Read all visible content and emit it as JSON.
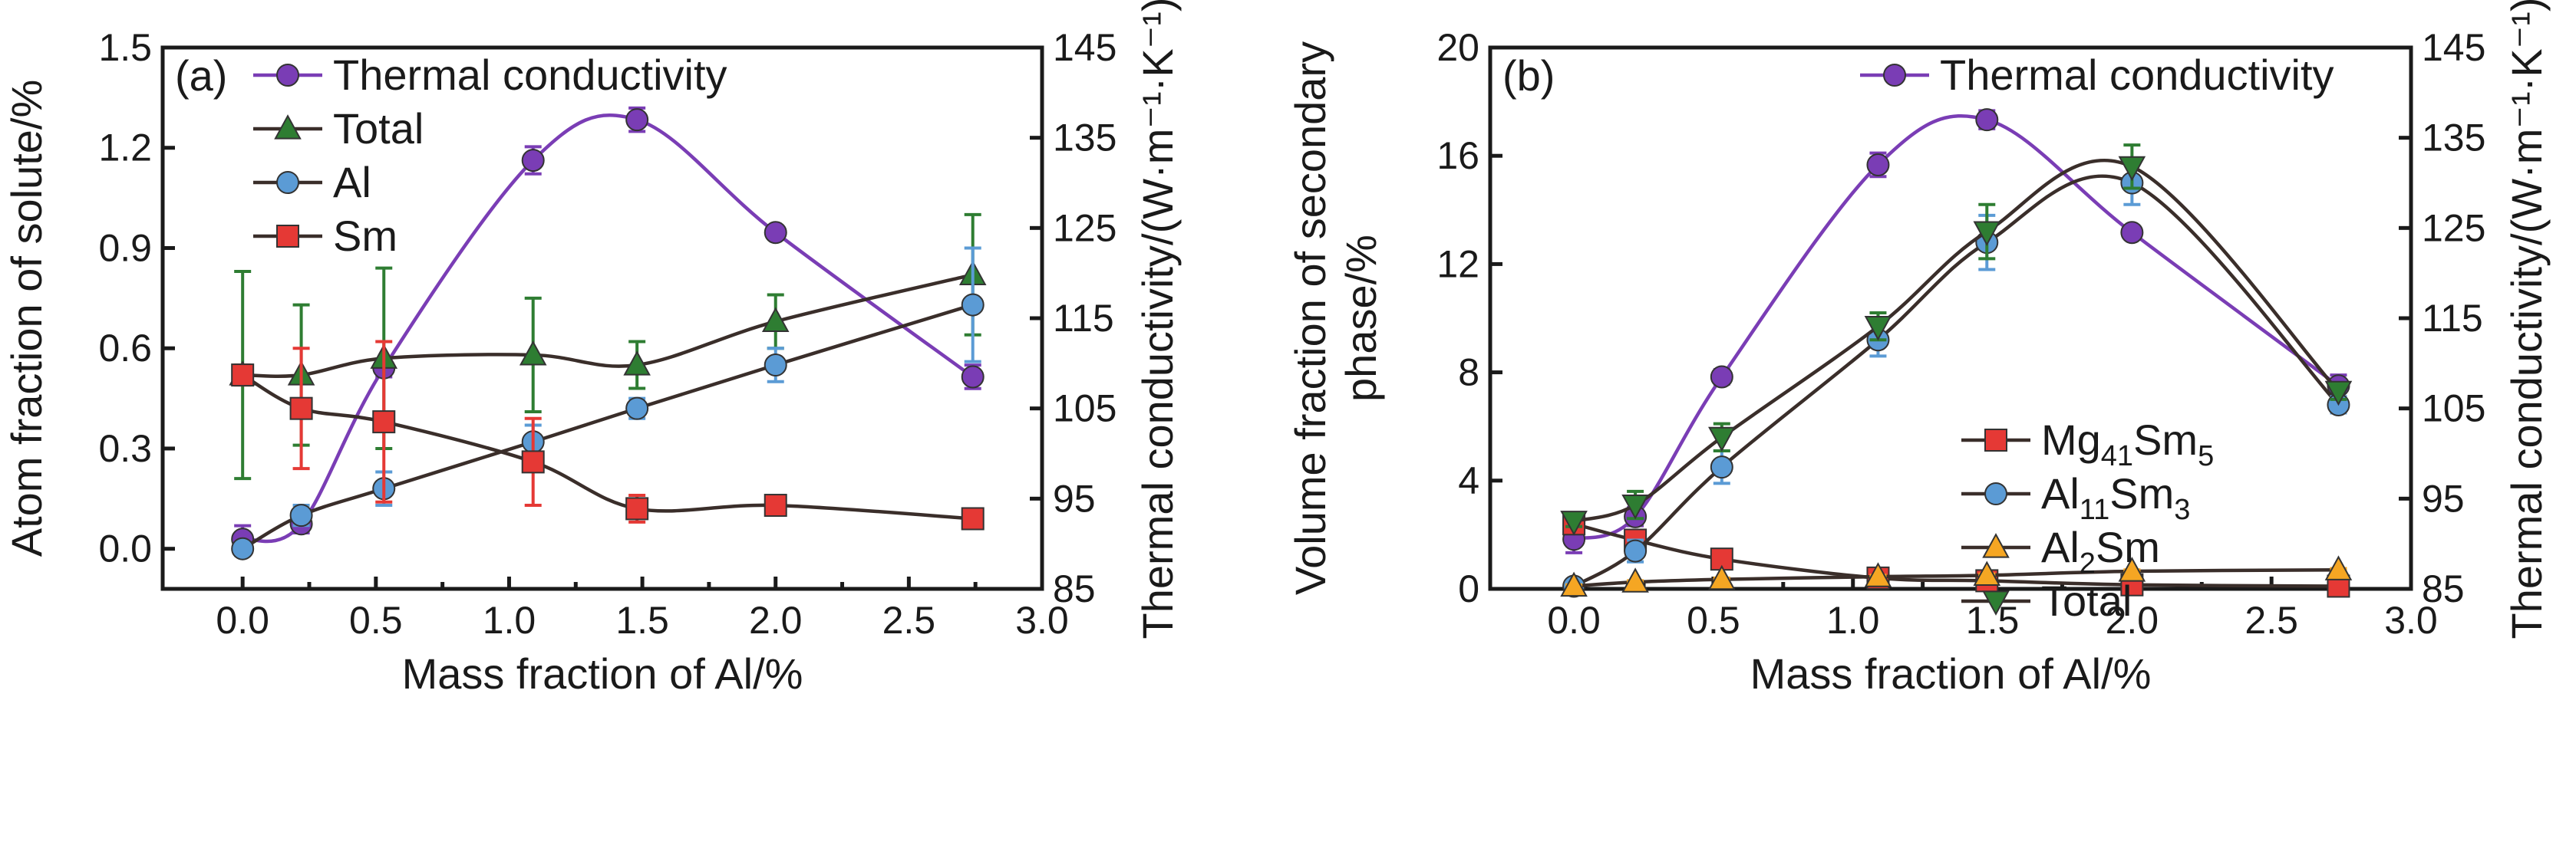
{
  "chart_data": [
    {
      "type": "line",
      "panel_label": "(a)",
      "xlabel": "Mass fraction of Al/%",
      "ylabel": "Atom fraction of solute/%",
      "y2label": "Thermal conductivity/(W·m⁻¹·K⁻¹)",
      "xlim": [
        -0.3,
        3.0
      ],
      "ylim": [
        -0.12,
        1.5
      ],
      "y2lim": [
        85,
        145
      ],
      "xticks": [
        "0.0",
        "0.5",
        "1.0",
        "1.5",
        "2.0",
        "2.5",
        "3.0"
      ],
      "yticks": [
        "0.0",
        "0.3",
        "0.6",
        "0.9",
        "1.2",
        "1.5"
      ],
      "y2ticks": [
        "85",
        "95",
        "105",
        "115",
        "125",
        "135",
        "145"
      ],
      "legend_position": "top-left",
      "series": [
        {
          "name": "Thermal conductivity",
          "axis": "right",
          "color": "#7a3db5",
          "marker": "circle",
          "x": [
            0.0,
            0.22,
            0.53,
            1.09,
            1.48,
            2.0,
            2.74
          ],
          "y": [
            90.5,
            92.2,
            109.5,
            132.5,
            137.0,
            124.5,
            108.5
          ],
          "err": [
            1.5,
            1.0,
            1.0,
            1.5,
            1.3,
            0.5,
            1.3
          ]
        },
        {
          "name": "Total",
          "axis": "left",
          "color": "#2e7d32",
          "marker": "triangle-up",
          "x": [
            0.0,
            0.22,
            0.53,
            1.09,
            1.48,
            2.0,
            2.74
          ],
          "y": [
            0.52,
            0.52,
            0.57,
            0.58,
            0.55,
            0.68,
            0.82
          ],
          "err": [
            0.31,
            0.21,
            0.27,
            0.17,
            0.07,
            0.08,
            0.18
          ]
        },
        {
          "name": "Al",
          "axis": "left",
          "color": "#5b9bd5",
          "marker": "circle",
          "x": [
            0.0,
            0.22,
            0.53,
            1.09,
            1.48,
            2.0,
            2.74
          ],
          "y": [
            0.0,
            0.1,
            0.18,
            0.32,
            0.42,
            0.55,
            0.73
          ],
          "err": [
            0.02,
            0.03,
            0.05,
            0.05,
            0.03,
            0.05,
            0.17
          ]
        },
        {
          "name": "Sm",
          "axis": "left",
          "color": "#e53935",
          "marker": "square",
          "x": [
            0.0,
            0.22,
            0.53,
            1.09,
            1.48,
            2.0,
            2.74
          ],
          "y": [
            0.52,
            0.42,
            0.38,
            0.26,
            0.12,
            0.13,
            0.09
          ],
          "err": [
            0.03,
            0.18,
            0.24,
            0.13,
            0.04,
            0.02,
            0.01
          ]
        }
      ]
    },
    {
      "type": "line",
      "panel_label": "(b)",
      "xlabel": "Mass fraction of Al/%",
      "ylabel": "Volume fraction of secondary phase/%",
      "y2label": "Thermal conductivity/(W·m⁻¹·K⁻¹)",
      "xlim": [
        -0.3,
        3.0
      ],
      "ylim": [
        0,
        20
      ],
      "y2lim": [
        85,
        145
      ],
      "xticks": [
        "0.0",
        "0.5",
        "1.0",
        "1.5",
        "2.0",
        "2.5",
        "3.0"
      ],
      "yticks": [
        "0",
        "4",
        "8",
        "12",
        "16",
        "20"
      ],
      "y2ticks": [
        "85",
        "95",
        "105",
        "115",
        "125",
        "135",
        "145"
      ],
      "legend_position": "top-right and center-right",
      "series": [
        {
          "name": "Thermal conductivity",
          "axis": "right",
          "color": "#7a3db5",
          "marker": "circle",
          "x": [
            0.0,
            0.22,
            0.53,
            1.09,
            1.48,
            2.0,
            2.74
          ],
          "y": [
            90.5,
            93.0,
            108.5,
            132.0,
            137.0,
            124.5,
            107.5
          ],
          "err": [
            1.5,
            1.0,
            0.8,
            1.3,
            1.0,
            0.5,
            1.2
          ]
        },
        {
          "name": "Mg41Sm5",
          "label_main": "Mg",
          "label_sub1": "41",
          "label_mid": "Sm",
          "label_sub2": "5",
          "axis": "left",
          "color": "#e53935",
          "marker": "square",
          "x": [
            0.0,
            0.22,
            0.53,
            1.09,
            1.48,
            2.0,
            2.74
          ],
          "y": [
            2.4,
            1.8,
            1.1,
            0.4,
            0.3,
            0.15,
            0.1
          ],
          "err": [
            0.3,
            0.3,
            0.2,
            0.1,
            0.1,
            0.05,
            0.05
          ]
        },
        {
          "name": "Al11Sm3",
          "label_main": "Al",
          "label_sub1": "11",
          "label_mid": "Sm",
          "label_sub2": "3",
          "axis": "left",
          "color": "#5b9bd5",
          "marker": "circle",
          "x": [
            0.0,
            0.22,
            0.53,
            1.09,
            1.48,
            2.0,
            2.74
          ],
          "y": [
            0.1,
            1.4,
            4.5,
            9.2,
            12.8,
            15.0,
            6.8
          ],
          "err": [
            0.1,
            0.4,
            0.6,
            0.6,
            1.0,
            0.8,
            0.3
          ]
        },
        {
          "name": "Al2Sm",
          "label_main": "Al",
          "label_sub1": "2",
          "label_mid": "Sm",
          "label_sub2": "",
          "axis": "left",
          "color": "#f5a623",
          "marker": "triangle-up",
          "x": [
            0.0,
            0.22,
            0.53,
            1.09,
            1.48,
            2.0,
            2.74
          ],
          "y": [
            0.1,
            0.25,
            0.35,
            0.45,
            0.5,
            0.65,
            0.7
          ],
          "err": [
            0.05,
            0.05,
            0.05,
            0.05,
            0.05,
            0.05,
            0.05
          ]
        },
        {
          "name": "Total",
          "axis": "left",
          "color": "#2e7d32",
          "marker": "triangle-down",
          "x": [
            0.0,
            0.22,
            0.53,
            1.09,
            1.48,
            2.0,
            2.74
          ],
          "y": [
            2.5,
            3.1,
            5.6,
            9.7,
            13.2,
            15.6,
            7.3
          ],
          "err": [
            0.2,
            0.5,
            0.5,
            0.5,
            1.0,
            0.8,
            0.3
          ]
        }
      ]
    }
  ]
}
